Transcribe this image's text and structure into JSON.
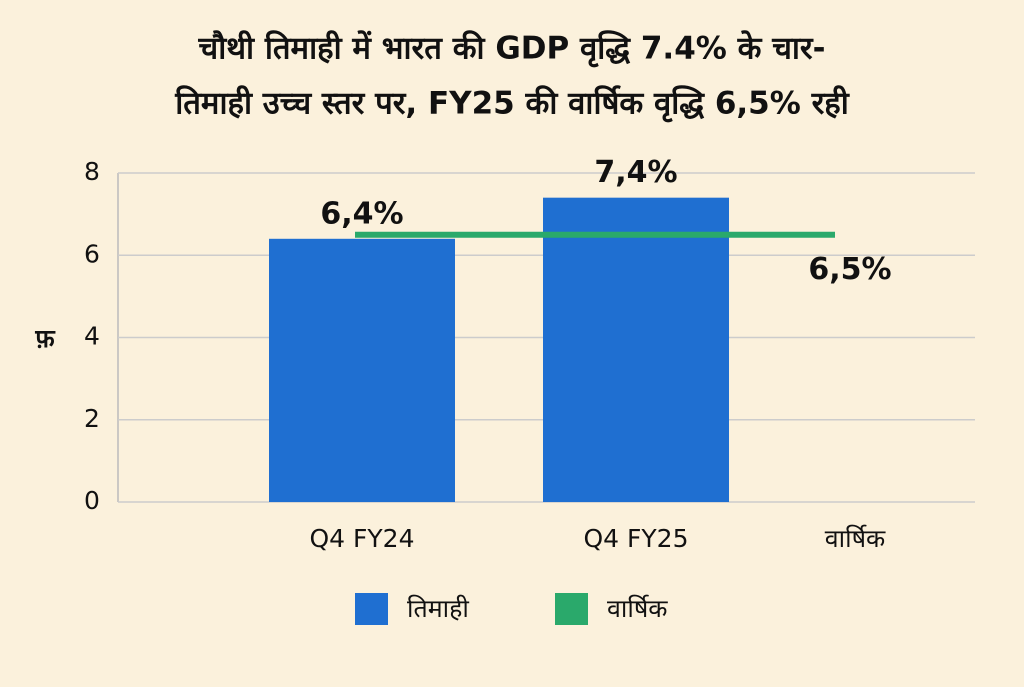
{
  "chart_data": {
    "type": "bar",
    "title": [
      "चौथी तिमाही में भारत की GDP वृद्धि 7.4% के चार-",
      "तिमाही उच्च स्तर पर, FY25 की वार्षिक वृद्धि 6,5% रही"
    ],
    "y_label": "फ़",
    "categories": [
      "Q4 FY24",
      "Q4 FY25",
      "वार्षिक"
    ],
    "series": [
      {
        "name": "तिमाही",
        "type": "bar",
        "color": "#1f6fd1",
        "values": [
          6.4,
          7.4,
          null
        ],
        "value_labels": [
          "6,4%",
          "7,4%",
          null
        ]
      },
      {
        "name": "वार्षिक",
        "type": "hline",
        "color": "#2aa96b",
        "values": [
          null,
          null,
          6.5
        ],
        "value_labels": [
          null,
          null,
          "6,5%"
        ]
      }
    ],
    "ylim": [
      0,
      8
    ],
    "yticks": [
      0,
      2,
      4,
      6,
      8
    ],
    "grid": true,
    "legend": "bottom"
  }
}
